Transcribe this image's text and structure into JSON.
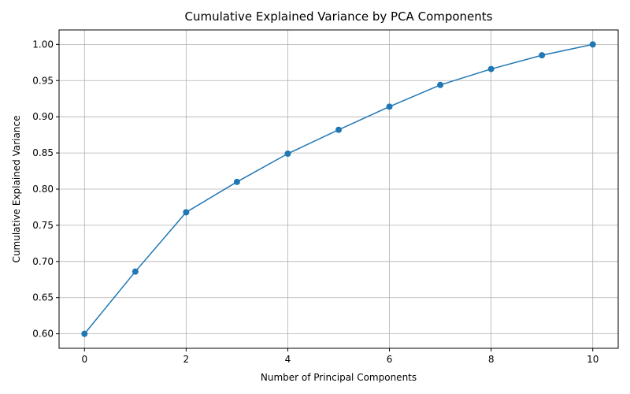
{
  "chart_data": {
    "type": "line",
    "title": "Cumulative Explained Variance by PCA Components",
    "xlabel": "Number of Principal Components",
    "ylabel": "Cumulative Explained Variance",
    "x": [
      0,
      1,
      2,
      3,
      4,
      5,
      6,
      7,
      8,
      9,
      10
    ],
    "series": [
      {
        "values": [
          0.6,
          0.686,
          0.768,
          0.81,
          0.849,
          0.882,
          0.914,
          0.944,
          0.966,
          0.985,
          1.0
        ],
        "color": "#1f77b4",
        "marker": "circle"
      }
    ],
    "xlim": [
      -0.5,
      10.5
    ],
    "ylim": [
      0.58,
      1.02
    ],
    "xticks": [
      0,
      2,
      4,
      6,
      8,
      10
    ],
    "xtick_labels": [
      "0",
      "2",
      "4",
      "6",
      "8",
      "10"
    ],
    "yticks": [
      0.6,
      0.65,
      0.7,
      0.75,
      0.8,
      0.85,
      0.9,
      0.95,
      1.0
    ],
    "ytick_labels": [
      "0.60",
      "0.65",
      "0.70",
      "0.75",
      "0.80",
      "0.85",
      "0.90",
      "0.95",
      "1.00"
    ],
    "grid": true
  }
}
